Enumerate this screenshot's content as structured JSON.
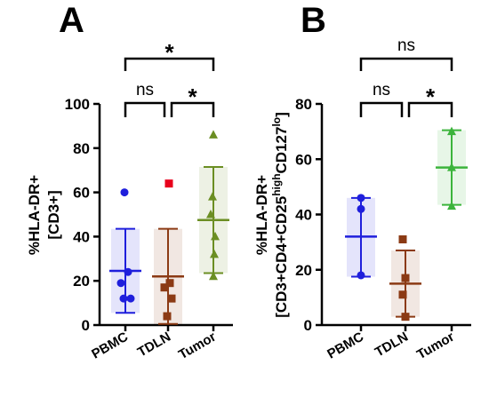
{
  "chart_data": [
    {
      "type": "scatter",
      "panel_label": "A",
      "title": "",
      "xlabel": "",
      "ylabel_lines": [
        "%HLA-DR+",
        "[CD3+]"
      ],
      "ylim": [
        0,
        100
      ],
      "yticks": [
        "0",
        "20",
        "40",
        "60",
        "80",
        "100"
      ],
      "categories": [
        "PBMC",
        "TDLN",
        "Tumor"
      ],
      "series": [
        {
          "category": "PBMC",
          "color": "#1f1fdc",
          "marker": "circle",
          "points": [
            60,
            24,
            19,
            12,
            12
          ],
          "mean": 24.5,
          "sd_low": 5.5,
          "sd_high": 43.5
        },
        {
          "category": "TDLN",
          "color": "#8b3a14",
          "marker": "square",
          "points": [
            64,
            19,
            17,
            12,
            4
          ],
          "mean": 22,
          "sd_low": 0.5,
          "sd_high": 43.5
        },
        {
          "category": "Tumor",
          "color": "#6b8e23",
          "marker": "triangle",
          "points": [
            86,
            58,
            50,
            40,
            32,
            22
          ],
          "mean": 47.5,
          "sd_low": 23.5,
          "sd_high": 71.5
        }
      ],
      "outlier_color": "#e8001c",
      "comparisons": [
        {
          "groups": [
            "PBMC",
            "TDLN"
          ],
          "label": "ns"
        },
        {
          "groups": [
            "TDLN",
            "Tumor"
          ],
          "label": "*"
        },
        {
          "groups": [
            "PBMC",
            "Tumor"
          ],
          "label": "*"
        }
      ]
    },
    {
      "type": "scatter",
      "panel_label": "B",
      "title": "",
      "xlabel": "",
      "ylabel_line1": "%HLA-DR+",
      "ylabel_line2": {
        "pre": "[CD3+CD4+CD25",
        "sup1": "high",
        "mid": "CD127",
        "sup2": "lo",
        "post": "]"
      },
      "ylim": [
        0,
        80
      ],
      "yticks": [
        "0",
        "20",
        "40",
        "60",
        "80"
      ],
      "categories": [
        "PBMC",
        "TDLN",
        "Tumor"
      ],
      "series": [
        {
          "category": "PBMC",
          "color": "#1f1fdc",
          "marker": "circle",
          "points": [
            46,
            42,
            18
          ],
          "mean": 32,
          "sd_low": 17.5,
          "sd_high": 46
        },
        {
          "category": "TDLN",
          "color": "#8b3a14",
          "marker": "square",
          "points": [
            31,
            17,
            11,
            3
          ],
          "mean": 15,
          "sd_low": 3,
          "sd_high": 27
        },
        {
          "category": "Tumor",
          "color": "#3cb43c",
          "marker": "triangle",
          "points": [
            70,
            57,
            43
          ],
          "mean": 57,
          "sd_low": 43.5,
          "sd_high": 70.5
        }
      ],
      "comparisons": [
        {
          "groups": [
            "PBMC",
            "TDLN"
          ],
          "label": "ns"
        },
        {
          "groups": [
            "TDLN",
            "Tumor"
          ],
          "label": "*"
        },
        {
          "groups": [
            "PBMC",
            "Tumor"
          ],
          "label": "ns"
        }
      ]
    }
  ]
}
